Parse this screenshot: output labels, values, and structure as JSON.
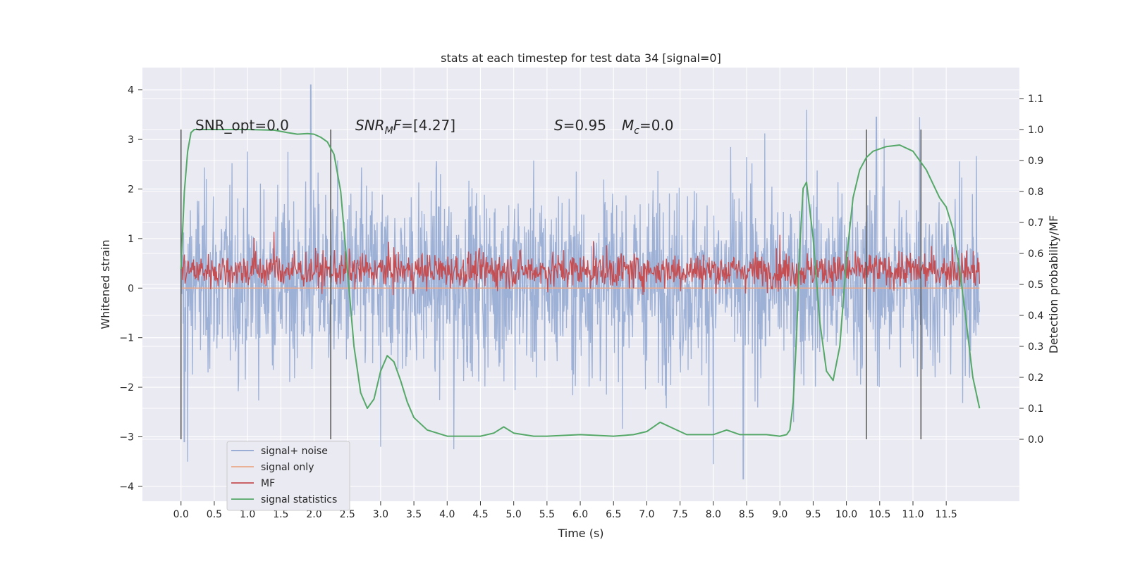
{
  "chart_data": {
    "type": "line",
    "title": "stats at each timestep for test data 34 [signal=0]",
    "xlabel": "Time (s)",
    "ylabel_left": "Whitened strain",
    "ylabel_right": "Detection probability/MF",
    "xlim": [
      -0.58,
      12.6
    ],
    "ylim_left": [
      -4.3,
      4.45
    ],
    "ylim_right": [
      -0.2,
      1.2
    ],
    "x_ticks": [
      "0.0",
      "0.5",
      "1.0",
      "1.5",
      "2.0",
      "2.5",
      "3.0",
      "3.5",
      "4.0",
      "4.5",
      "5.0",
      "5.5",
      "6.0",
      "6.5",
      "7.0",
      "7.5",
      "8.0",
      "8.5",
      "9.0",
      "9.5",
      "10.0",
      "10.5",
      "11.0",
      "11.5"
    ],
    "y_left_ticks": [
      "4",
      "3",
      "2",
      "1",
      "0",
      "−1",
      "−2",
      "−3",
      "−4"
    ],
    "y_right_ticks": [
      "1.1",
      "1.0",
      "0.9",
      "0.8",
      "0.7",
      "0.6",
      "0.5",
      "0.4",
      "0.3",
      "0.2",
      "0.1",
      "0.0"
    ],
    "grid": true,
    "legend": "lower-left",
    "annotations": {
      "snr_opt": "SNR_opt=0.0",
      "snr_mf": "[4.27]",
      "s_val": "=0.95",
      "mc_val": "=0.0"
    },
    "series": [
      {
        "name": "signal+ noise",
        "color": "#8fa6d1",
        "axis": "left",
        "x_range": [
          0.0,
          12.0
        ],
        "typical_band": [
          -2.0,
          2.3
        ],
        "extremes": [
          [
            0.05,
            -3.1
          ],
          [
            0.1,
            -3.5
          ],
          [
            1.95,
            4.1
          ],
          [
            3.0,
            -3.2
          ],
          [
            4.1,
            -3.25
          ],
          [
            8.0,
            -3.55
          ],
          [
            8.45,
            -3.85
          ],
          [
            9.4,
            3.6
          ],
          [
            10.45,
            3.45
          ],
          [
            11.1,
            3.45
          ]
        ]
      },
      {
        "name": "signal only",
        "color": "#eaa98a",
        "axis": "left",
        "x": [
          0.0,
          12.0
        ],
        "y": [
          0.0,
          0.0
        ]
      },
      {
        "name": "MF",
        "color": "#c44e52",
        "axis": "right",
        "typical_band": [
          0.5,
          0.59
        ],
        "extremes": [
          [
            1.1,
            0.65
          ],
          [
            1.4,
            0.67
          ],
          [
            3.2,
            0.62
          ],
          [
            6.2,
            0.64
          ],
          [
            9.0,
            0.66
          ],
          [
            11.6,
            0.62
          ]
        ]
      },
      {
        "name": "signal statistics",
        "color": "#55a868",
        "axis": "right",
        "x": [
          0.0,
          0.05,
          0.1,
          0.15,
          0.2,
          0.3,
          0.5,
          1.0,
          1.4,
          1.6,
          1.75,
          1.9,
          2.0,
          2.1,
          2.2,
          2.3,
          2.4,
          2.5,
          2.6,
          2.7,
          2.8,
          2.9,
          3.0,
          3.1,
          3.2,
          3.3,
          3.4,
          3.5,
          3.7,
          4.0,
          4.5,
          4.7,
          4.85,
          5.0,
          5.3,
          5.5,
          6.0,
          6.5,
          6.8,
          7.0,
          7.1,
          7.2,
          7.4,
          7.6,
          8.0,
          8.2,
          8.4,
          8.6,
          8.8,
          9.0,
          9.1,
          9.15,
          9.2,
          9.25,
          9.3,
          9.35,
          9.4,
          9.5,
          9.6,
          9.7,
          9.8,
          9.9,
          10.0,
          10.1,
          10.2,
          10.3,
          10.4,
          10.6,
          10.8,
          11.0,
          11.2,
          11.4,
          11.5,
          11.6,
          11.7,
          11.8,
          11.9,
          12.0
        ],
        "y": [
          0.55,
          0.8,
          0.93,
          0.99,
          1.0,
          1.0,
          1.0,
          1.0,
          0.998,
          0.99,
          0.985,
          0.987,
          0.985,
          0.975,
          0.96,
          0.92,
          0.8,
          0.55,
          0.3,
          0.15,
          0.1,
          0.13,
          0.22,
          0.27,
          0.25,
          0.19,
          0.12,
          0.07,
          0.03,
          0.01,
          0.01,
          0.02,
          0.04,
          0.02,
          0.01,
          0.01,
          0.015,
          0.01,
          0.015,
          0.025,
          0.04,
          0.055,
          0.035,
          0.015,
          0.015,
          0.03,
          0.015,
          0.015,
          0.015,
          0.01,
          0.015,
          0.03,
          0.12,
          0.33,
          0.62,
          0.81,
          0.83,
          0.65,
          0.38,
          0.22,
          0.19,
          0.3,
          0.58,
          0.78,
          0.87,
          0.91,
          0.93,
          0.945,
          0.95,
          0.93,
          0.87,
          0.78,
          0.75,
          0.68,
          0.55,
          0.38,
          0.2,
          0.1
        ]
      }
    ],
    "vlines": [
      0.0,
      2.25,
      10.3,
      11.12
    ]
  }
}
